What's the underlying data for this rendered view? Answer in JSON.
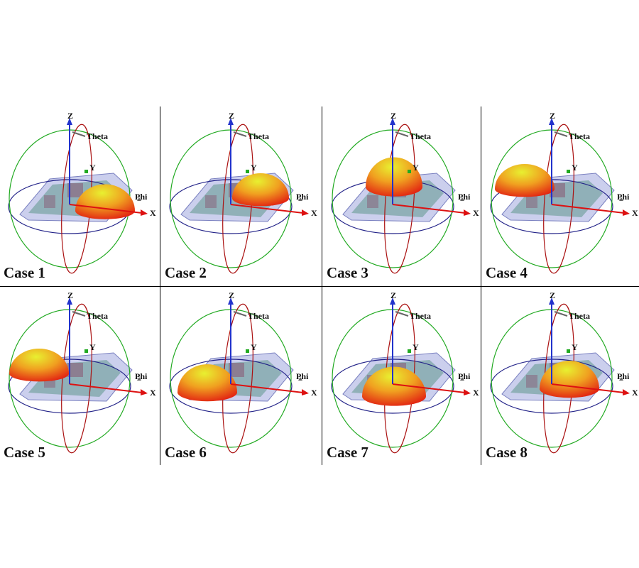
{
  "axis_labels": {
    "z": "Z",
    "theta": "Theta",
    "y": "Y",
    "phi": "Phi",
    "x": "X"
  },
  "panels": [
    {
      "label": "Case 1"
    },
    {
      "label": "Case 2"
    },
    {
      "label": "Case 3"
    },
    {
      "label": "Case 4"
    },
    {
      "label": "Case 5"
    },
    {
      "label": "Case 6"
    },
    {
      "label": "Case 7"
    },
    {
      "label": "Case 8"
    }
  ],
  "colors": {
    "z_axis": "#2233cc",
    "x_axis": "#dd1111",
    "theta_circle": "#aa1111",
    "phi_circle": "#22aa22",
    "azimuth_circle": "#222288",
    "lobe_hot": "#e01010",
    "lobe_cool": "#e8f030"
  }
}
